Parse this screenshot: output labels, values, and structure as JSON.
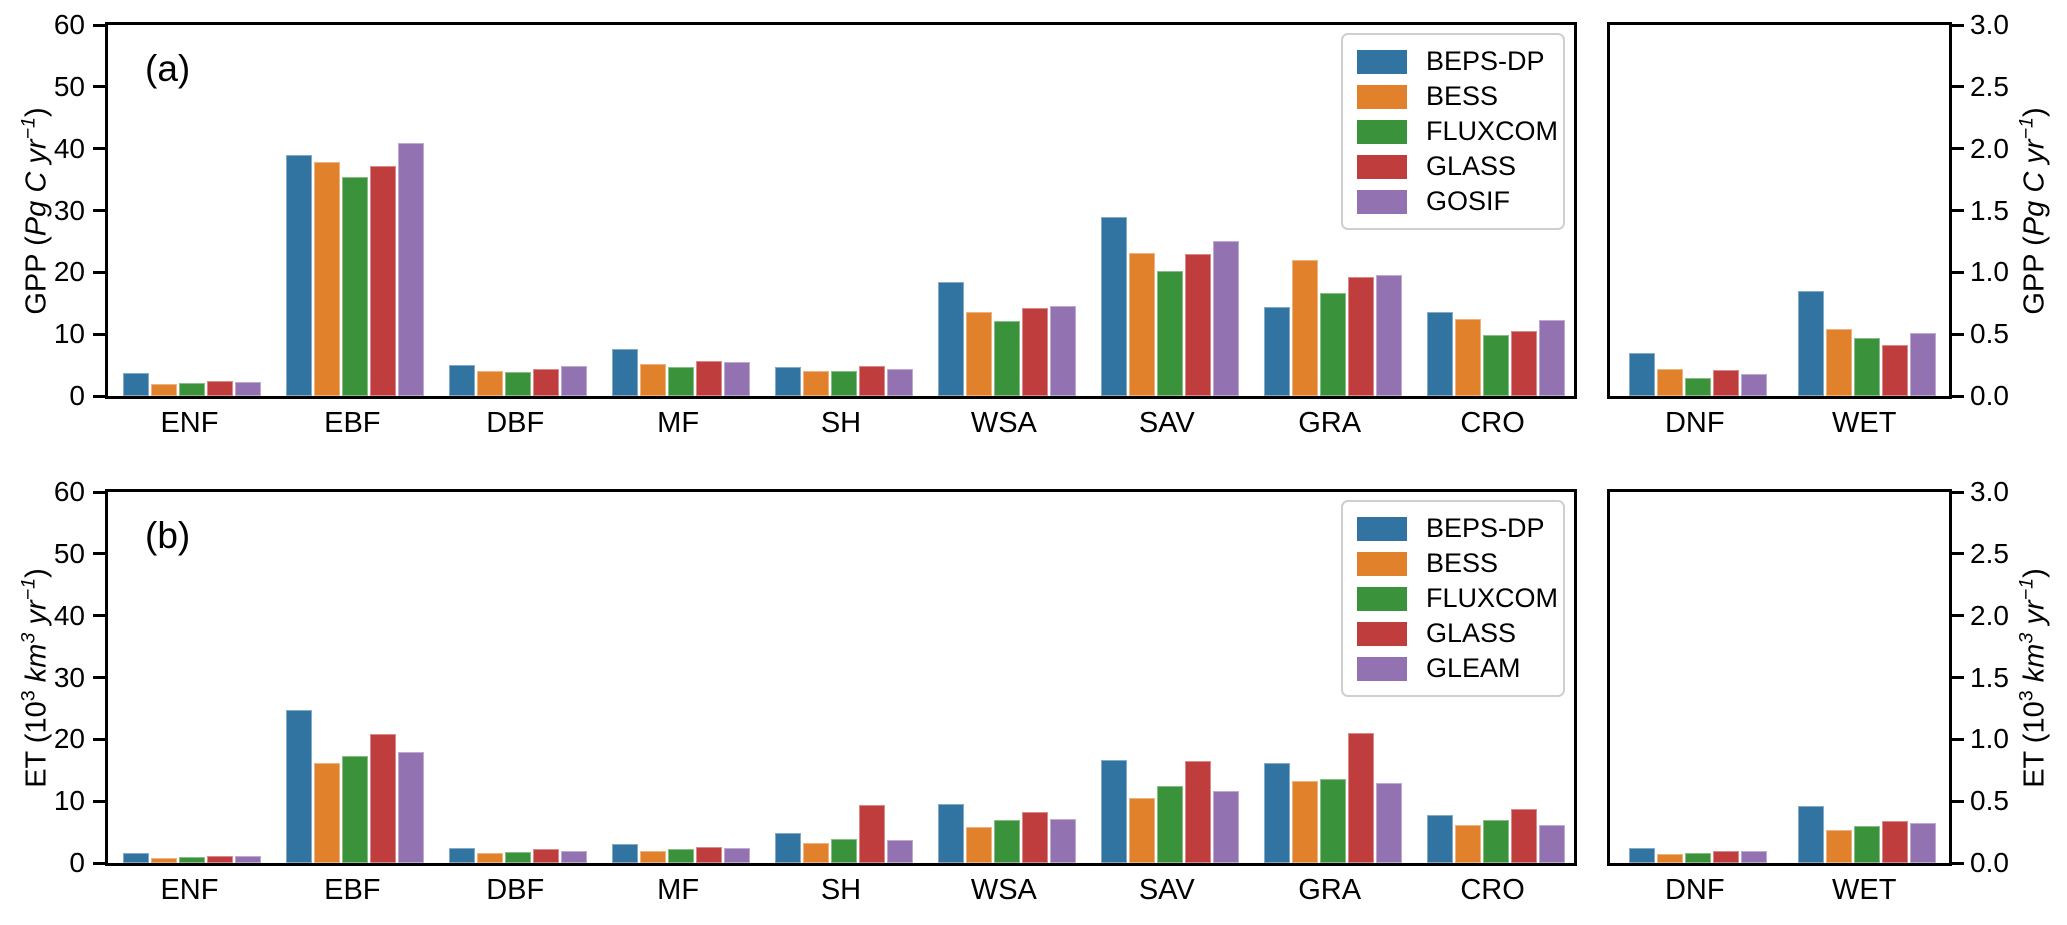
{
  "figure_title": "",
  "chart_data": [
    {
      "type": "bar",
      "panel_label": "(a)",
      "ylabel_text": "GPP (Pg C yr⁻¹)",
      "right_ylabel_text": "GPP (Pg C yr⁻¹)",
      "ylabel_tokens": [
        {
          "text": "GPP ("
        },
        {
          "text": "Pg C yr",
          "italic": true
        },
        {
          "text": "−1",
          "italic": true,
          "sup": true
        },
        {
          "text": ")"
        }
      ],
      "right_ylabel_tokens": [
        {
          "text": "GPP ("
        },
        {
          "text": "Pg C yr",
          "italic": true
        },
        {
          "text": "−1",
          "italic": true,
          "sup": true
        },
        {
          "text": ")"
        }
      ],
      "categories": [
        "ENF",
        "EBF",
        "DBF",
        "MF",
        "SH",
        "WSA",
        "SAV",
        "GRA",
        "CRO"
      ],
      "sub_categories": [
        "DNF",
        "WET"
      ],
      "ylim": [
        0,
        60
      ],
      "sub_ylim": [
        0,
        3.0
      ],
      "yticks": [
        0,
        10,
        20,
        30,
        40,
        50,
        60
      ],
      "sub_yticks": [
        0.0,
        0.5,
        1.0,
        1.5,
        2.0,
        2.5,
        3.0
      ],
      "legend_position": "upper right",
      "grid": false,
      "series": [
        {
          "name": "BEPS-DP",
          "color": "#3274a1",
          "values": [
            3.7,
            39.0,
            5.0,
            7.6,
            4.7,
            18.5,
            29.0,
            14.4,
            13.6
          ],
          "sub_values": [
            0.35,
            0.85
          ]
        },
        {
          "name": "BESS",
          "color": "#e1812c",
          "values": [
            2.0,
            37.8,
            4.0,
            5.2,
            4.0,
            13.6,
            23.1,
            22.0,
            12.4
          ],
          "sub_values": [
            0.22,
            0.54
          ]
        },
        {
          "name": "FLUXCOM",
          "color": "#3a923a",
          "values": [
            2.1,
            35.5,
            3.9,
            4.7,
            4.0,
            12.1,
            20.2,
            16.7,
            9.9
          ],
          "sub_values": [
            0.15,
            0.47
          ]
        },
        {
          "name": "GLASS",
          "color": "#c03d3e",
          "values": [
            2.5,
            37.2,
            4.3,
            5.6,
            4.9,
            14.2,
            23.0,
            19.2,
            10.6
          ],
          "sub_values": [
            0.21,
            0.41
          ]
        },
        {
          "name": "GOSIF",
          "color": "#9372b2",
          "values": [
            2.2,
            41.0,
            4.8,
            5.5,
            4.4,
            14.5,
            25.1,
            19.6,
            12.3
          ],
          "sub_values": [
            0.18,
            0.51
          ]
        }
      ]
    },
    {
      "type": "bar",
      "panel_label": "(b)",
      "ylabel_text": "ET (10³ km³ yr⁻¹)",
      "right_ylabel_text": "ET (10³ km³ yr⁻¹)",
      "ylabel_tokens": [
        {
          "text": "ET (10"
        },
        {
          "text": "3",
          "sup": true
        },
        {
          "text": " "
        },
        {
          "text": "km",
          "italic": true
        },
        {
          "text": "3",
          "italic": true,
          "sup": true
        },
        {
          "text": " "
        },
        {
          "text": "yr",
          "italic": true
        },
        {
          "text": "−1",
          "italic": true,
          "sup": true
        },
        {
          "text": ")"
        }
      ],
      "right_ylabel_tokens": [
        {
          "text": "ET (10"
        },
        {
          "text": "3",
          "sup": true
        },
        {
          "text": " "
        },
        {
          "text": "km",
          "italic": true
        },
        {
          "text": "3",
          "italic": true,
          "sup": true
        },
        {
          "text": " "
        },
        {
          "text": "yr",
          "italic": true
        },
        {
          "text": "−1",
          "italic": true,
          "sup": true
        },
        {
          "text": ")"
        }
      ],
      "categories": [
        "ENF",
        "EBF",
        "DBF",
        "MF",
        "SH",
        "WSA",
        "SAV",
        "GRA",
        "CRO"
      ],
      "sub_categories": [
        "DNF",
        "WET"
      ],
      "ylim": [
        0,
        60
      ],
      "sub_ylim": [
        0,
        3.0
      ],
      "yticks": [
        0,
        10,
        20,
        30,
        40,
        50,
        60
      ],
      "sub_yticks": [
        0.0,
        0.5,
        1.0,
        1.5,
        2.0,
        2.5,
        3.0
      ],
      "legend_position": "upper right",
      "grid": false,
      "series": [
        {
          "name": "BEPS-DP",
          "color": "#3274a1",
          "values": [
            1.6,
            24.8,
            2.4,
            3.1,
            4.8,
            9.6,
            16.6,
            16.1,
            7.8
          ],
          "sub_values": [
            0.12,
            0.46
          ]
        },
        {
          "name": "BESS",
          "color": "#e1812c",
          "values": [
            0.8,
            16.1,
            1.6,
            1.9,
            3.2,
            5.9,
            10.6,
            13.3,
            6.2
          ],
          "sub_values": [
            0.07,
            0.27
          ]
        },
        {
          "name": "FLUXCOM",
          "color": "#3a923a",
          "values": [
            1.0,
            17.3,
            1.8,
            2.3,
            3.9,
            6.9,
            12.4,
            13.6,
            6.9
          ],
          "sub_values": [
            0.08,
            0.3
          ]
        },
        {
          "name": "GLASS",
          "color": "#c03d3e",
          "values": [
            1.1,
            20.9,
            2.2,
            2.6,
            9.4,
            8.2,
            16.5,
            21.0,
            8.8
          ],
          "sub_values": [
            0.1,
            0.34
          ]
        },
        {
          "name": "GLEAM",
          "color": "#9372b2",
          "values": [
            1.2,
            17.9,
            1.9,
            2.4,
            3.7,
            7.1,
            11.7,
            12.9,
            6.2
          ],
          "sub_values": [
            0.1,
            0.32
          ]
        }
      ]
    }
  ]
}
